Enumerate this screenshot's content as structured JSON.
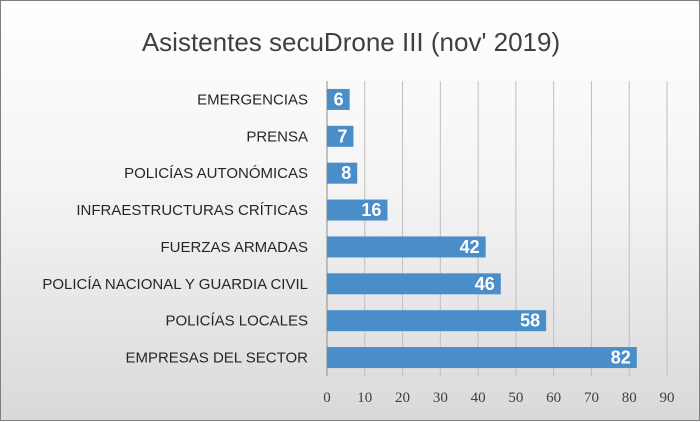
{
  "chart_data": {
    "type": "bar",
    "orientation": "horizontal",
    "title": "Asistentes  secuDrone III  (nov' 2019)",
    "categories": [
      "EMERGENCIAS",
      "PRENSA",
      "POLICÍAS AUTONÓMICAS",
      "INFRAESTRUCTURAS CRÍTICAS",
      "FUERZAS ARMADAS",
      "POLICÍA NACIONAL Y GUARDIA CIVIL",
      "POLICÍAS LOCALES",
      "EMPRESAS DEL SECTOR"
    ],
    "values": [
      6,
      7,
      8,
      16,
      42,
      46,
      58,
      82
    ],
    "xlim": [
      0,
      90
    ],
    "xticks": [
      0,
      10,
      20,
      30,
      40,
      50,
      60,
      70,
      80,
      90
    ],
    "grid": "vertical",
    "legend": "none",
    "bar_color": "#4a8ec9",
    "gridline_color": "#bfbfbf",
    "label_color": "#ffffff"
  }
}
